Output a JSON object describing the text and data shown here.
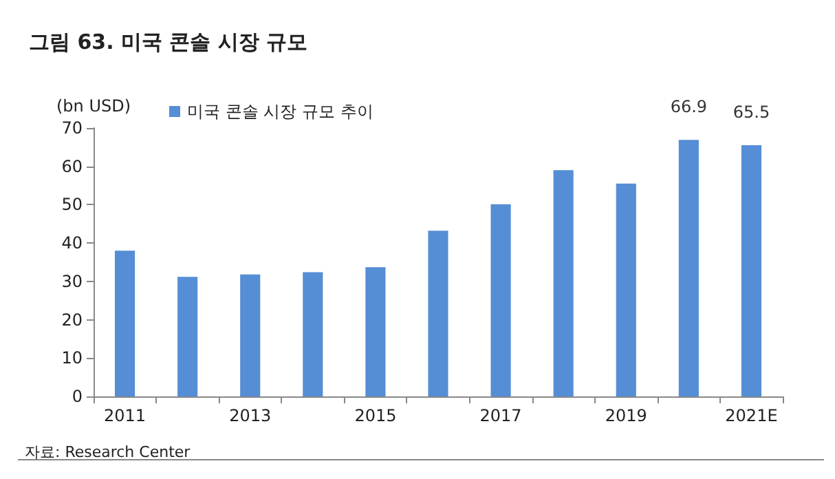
{
  "chart_data": {
    "type": "bar",
    "title": "그림 63. 미국 콘솔 시장 규모",
    "ylabel": "(bn USD)",
    "annotations": [
      "자료: Research Center"
    ],
    "categories": [
      "2011",
      null,
      "2013",
      null,
      "2015",
      null,
      "2017",
      null,
      "2019",
      null,
      "2021E"
    ],
    "series": [
      {
        "name": "미국 콘솔 시장 규모 추이",
        "color": "#558ed5",
        "values": [
          38,
          31.2,
          31.8,
          32.4,
          33.7,
          43.2,
          50.1,
          59,
          55.5,
          66.9,
          65.5
        ],
        "value_labels": [
          null,
          null,
          null,
          null,
          null,
          null,
          null,
          null,
          null,
          "66.9",
          "65.5"
        ]
      }
    ],
    "ylim": [
      0,
      70
    ],
    "yticks": [
      0,
      10,
      20,
      30,
      40,
      50,
      60,
      70
    ],
    "grid": false,
    "legend": "top"
  }
}
